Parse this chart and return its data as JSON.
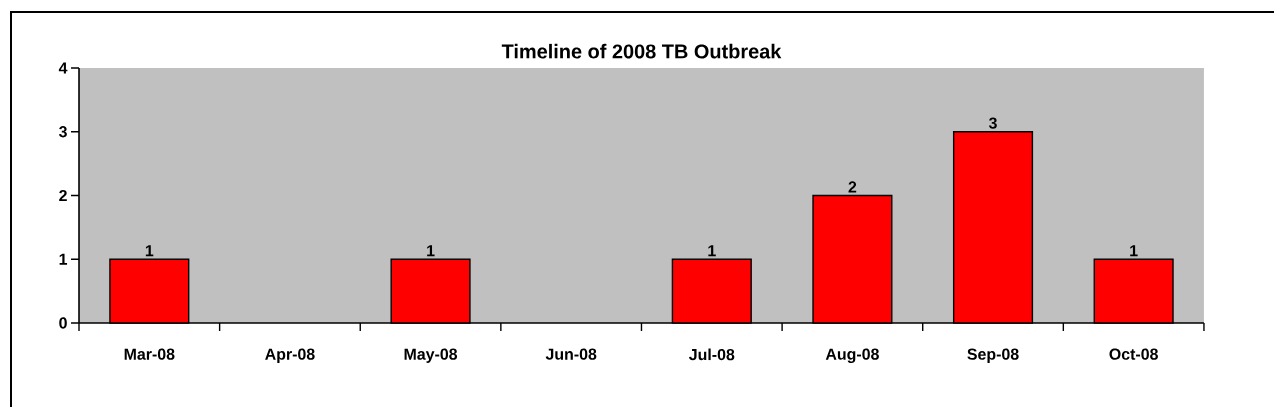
{
  "chart_data": {
    "type": "bar",
    "title": "Timeline of 2008 TB Outbreak",
    "categories": [
      "Mar-08",
      "Apr-08",
      "May-08",
      "Jun-08",
      "Jul-08",
      "Aug-08",
      "Sep-08",
      "Oct-08"
    ],
    "values": [
      1,
      null,
      1,
      null,
      1,
      2,
      3,
      1
    ],
    "color": "#ff0000",
    "ylim": [
      0,
      4
    ],
    "yticks": [
      0,
      1,
      2,
      3,
      4
    ],
    "data_labels": true
  }
}
